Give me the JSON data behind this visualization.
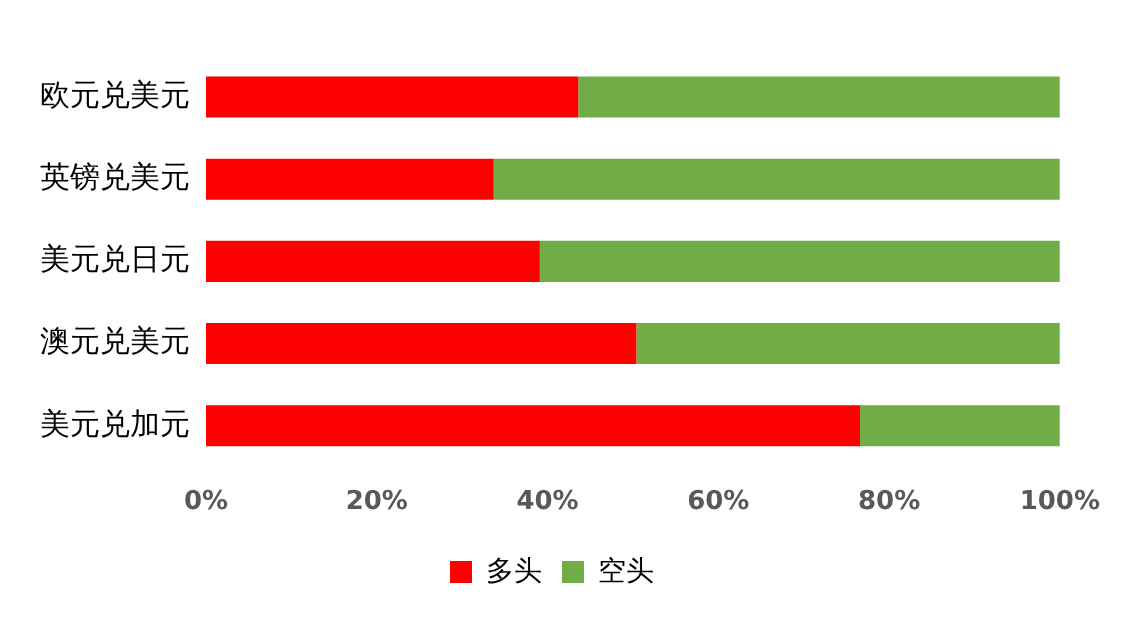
{
  "chart_data": {
    "type": "bar",
    "orientation": "horizontal",
    "stacked": true,
    "categories": [
      "欧元兑美元",
      "英镑兑美元",
      "美元兑日元",
      "澳元兑美元",
      "美元兑加元"
    ],
    "series": [
      {
        "name": "多头",
        "color": "#ff0000",
        "values": [
          43.6,
          33.7,
          39.1,
          50.4,
          76.6
        ]
      },
      {
        "name": "空头",
        "color": "#70ad47",
        "values": [
          56.4,
          66.3,
          60.9,
          49.6,
          23.4
        ]
      }
    ],
    "xlim": [
      0,
      100
    ],
    "xticks": [
      {
        "value": 0,
        "label": "0%"
      },
      {
        "value": 20,
        "label": "20%"
      },
      {
        "value": 40,
        "label": "40%"
      },
      {
        "value": 60,
        "label": "60%"
      },
      {
        "value": 80,
        "label": "80%"
      },
      {
        "value": 100,
        "label": "100%"
      }
    ],
    "grid": false,
    "legend": "bottom"
  }
}
